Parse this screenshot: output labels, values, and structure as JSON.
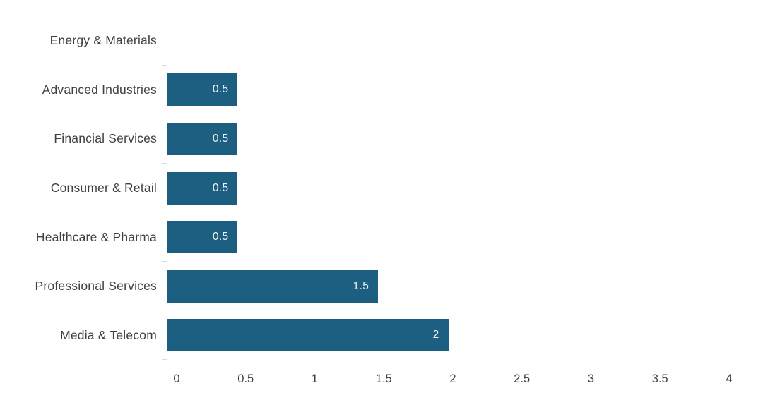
{
  "chart_data": {
    "type": "bar",
    "orientation": "horizontal",
    "title": "",
    "xlabel": "",
    "ylabel": "",
    "categories": [
      "Energy & Materials",
      "Advanced Industries",
      "Financial Services",
      "Consumer & Retail",
      "Healthcare & Pharma",
      "Professional Services",
      "Media & Telecom"
    ],
    "values": [
      0,
      0.5,
      0.5,
      0.5,
      0.5,
      1.5,
      2
    ],
    "bar_labels": [
      "",
      "0.5",
      "0.5",
      "0.5",
      "0.5",
      "1.5",
      "2"
    ],
    "xlim": [
      0,
      4
    ],
    "xticks": [
      "0",
      "0.5",
      "1",
      "1.5",
      "2",
      "2.5",
      "3",
      "3.5",
      "4"
    ],
    "grid": false,
    "legend": null,
    "colors": {
      "bar": "#1d5f80",
      "category_text": "#404040",
      "value_text": "#f2f2f2",
      "axis_line": "#d9d9d9",
      "tick_text": "#3d3d3d",
      "background": "#ffffff"
    }
  }
}
